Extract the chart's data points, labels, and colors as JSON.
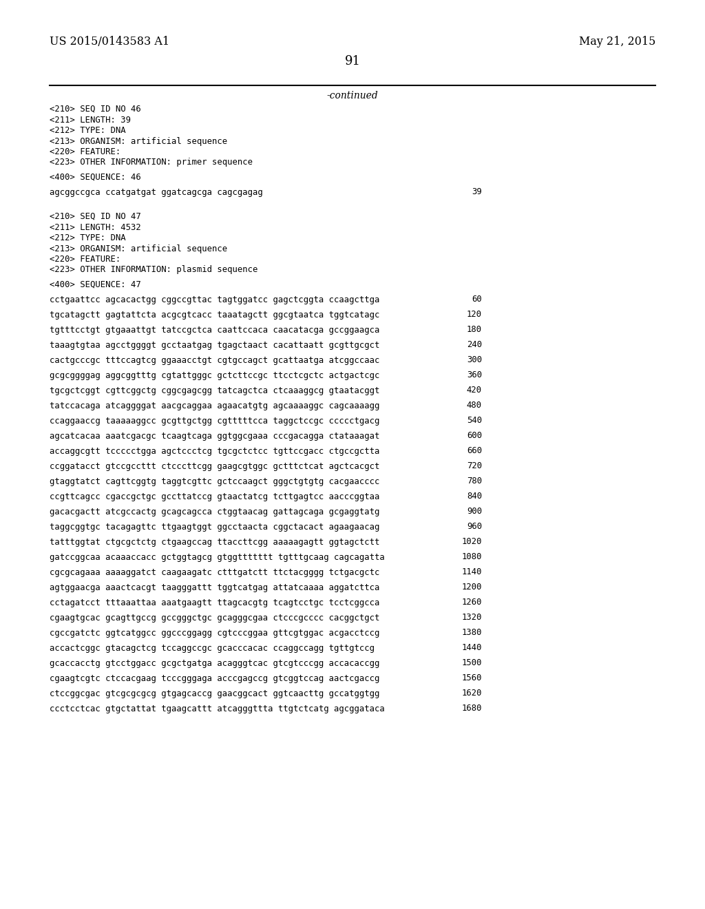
{
  "header_left": "US 2015/0143583 A1",
  "header_right": "May 21, 2015",
  "page_number": "91",
  "continued_label": "-continued",
  "background_color": "#ffffff",
  "text_color": "#000000",
  "seq46_header": [
    "<210> SEQ ID NO 46",
    "<211> LENGTH: 39",
    "<212> TYPE: DNA",
    "<213> ORGANISM: artificial sequence",
    "<220> FEATURE:",
    "<223> OTHER INFORMATION: primer sequence"
  ],
  "seq46_label": "<400> SEQUENCE: 46",
  "seq46_data": [
    [
      "agcggccgca ccatgatgat ggatcagcga cagcgagag",
      "39"
    ]
  ],
  "seq47_header": [
    "<210> SEQ ID NO 47",
    "<211> LENGTH: 4532",
    "<212> TYPE: DNA",
    "<213> ORGANISM: artificial sequence",
    "<220> FEATURE:",
    "<223> OTHER INFORMATION: plasmid sequence"
  ],
  "seq47_label": "<400> SEQUENCE: 47",
  "seq47_data": [
    [
      "cctgaattcc agcacactgg cggccgttac tagtggatcc gagctcggta ccaagcttga",
      "60"
    ],
    [
      "tgcatagctt gagtattcta acgcgtcacc taaatagctt ggcgtaatca tggtcatagc",
      "120"
    ],
    [
      "tgtttcctgt gtgaaattgt tatccgctca caattccaca caacatacga gccggaagca",
      "180"
    ],
    [
      "taaagtgtaa agcctggggt gcctaatgag tgagctaact cacattaatt gcgttgcgct",
      "240"
    ],
    [
      "cactgcccgc tttccagtcg ggaaacctgt cgtgccagct gcattaatga atcggccaac",
      "300"
    ],
    [
      "gcgcggggag aggcggtttg cgtattgggc gctcttccgc ttcctcgctc actgactcgc",
      "360"
    ],
    [
      "tgcgctcggt cgttcggctg cggcgagcgg tatcagctca ctcaaaggcg gtaatacggt",
      "420"
    ],
    [
      "tatccacaga atcaggggat aacgcaggaa agaacatgtg agcaaaaggc cagcaaaagg",
      "480"
    ],
    [
      "ccaggaaccg taaaaaggcc gcgttgctgg cgtttttcca taggctccgc ccccctgacg",
      "540"
    ],
    [
      "agcatcacaa aaatcgacgc tcaagtcaga ggtggcgaaa cccgacagga ctataaagat",
      "600"
    ],
    [
      "accaggcgtt tccccctgga agctccctcg tgcgctctcc tgttccgacc ctgccgctta",
      "660"
    ],
    [
      "ccggatacct gtccgccttt ctcccttcgg gaagcgtggc gctttctcat agctcacgct",
      "720"
    ],
    [
      "gtaggtatct cagttcggtg taggtcgttc gctccaagct gggctgtgtg cacgaacccc",
      "780"
    ],
    [
      "ccgttcagcc cgaccgctgc gccttatccg gtaactatcg tcttgagtcc aacccggtaa",
      "840"
    ],
    [
      "gacacgactt atcgccactg gcagcagcca ctggtaacag gattagcaga gcgaggtatg",
      "900"
    ],
    [
      "taggcggtgc tacagagttc ttgaagtggt ggcctaacta cggctacact agaagaacag",
      "960"
    ],
    [
      "tatttggtat ctgcgctctg ctgaagccag ttaccttcgg aaaaagagtt ggtagctctt",
      "1020"
    ],
    [
      "gatccggcaa acaaaccacc gctggtagcg gtggttttttt tgtttgcaag cagcagatta",
      "1080"
    ],
    [
      "cgcgcagaaa aaaaggatct caagaagatc ctttgatctt ttctacgggg tctgacgctc",
      "1140"
    ],
    [
      "agtggaacga aaactcacgt taagggattt tggtcatgag attatcaaaa aggatcttca",
      "1200"
    ],
    [
      "cctagatcct tttaaattaa aaatgaagtt ttagcacgtg tcagtcctgc tcctcggcca",
      "1260"
    ],
    [
      "cgaagtgcac gcagttgccg gccgggctgc gcagggcgaa ctcccgcccc cacggctgct",
      "1320"
    ],
    [
      "cgccgatctc ggtcatggcc ggcccggagg cgtcccggaa gttcgtggac acgacctccg",
      "1380"
    ],
    [
      "accactcggc gtacagctcg tccaggccgc gcacccacac ccaggccagg tgttgtccg",
      "1440"
    ],
    [
      "gcaccacctg gtcctggacc gcgctgatga acagggtcac gtcgtcccgg accacaccgg",
      "1500"
    ],
    [
      "cgaagtcgtc ctccacgaag tcccgggaga acccgagccg gtcggtccag aactcgaccg",
      "1560"
    ],
    [
      "ctccggcgac gtcgcgcgcg gtgagcaccg gaacggcact ggtcaacttg gccatggtgg",
      "1620"
    ],
    [
      "ccctcctcac gtgctattat tgaagcattt atcagggttta ttgtctcatg agcggataca",
      "1680"
    ]
  ]
}
